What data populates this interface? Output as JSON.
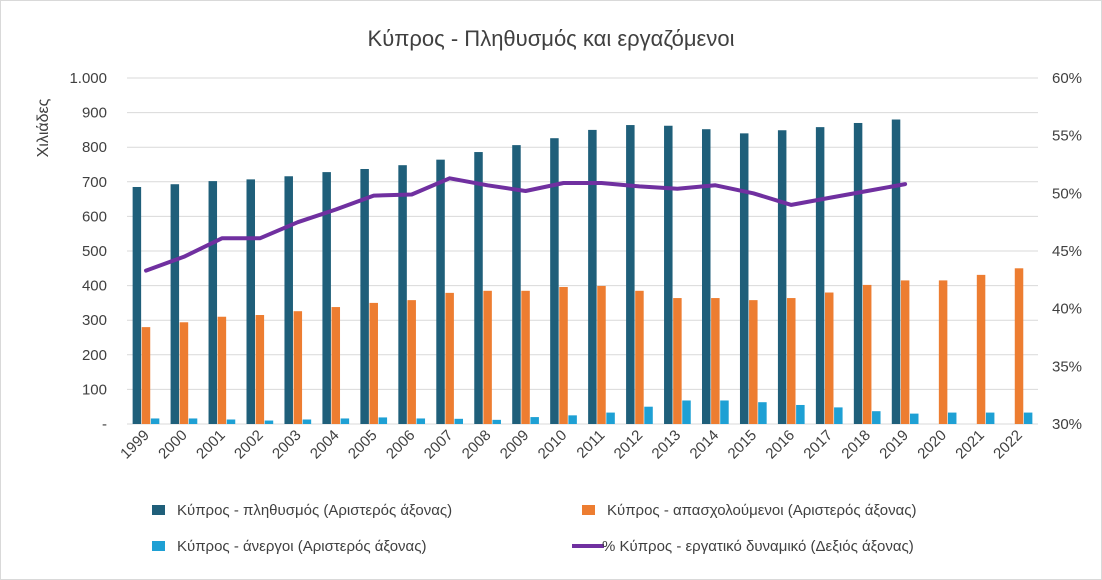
{
  "chart_data": {
    "type": "bar",
    "title": "Κύπρος - Πληθυσμός και εργαζόμενοι",
    "ylabel": "Χιλιάδες",
    "xlabel": "",
    "categories": [
      "1999",
      "2000",
      "2001",
      "2002",
      "2003",
      "2004",
      "2005",
      "2006",
      "2007",
      "2008",
      "2009",
      "2010",
      "2011",
      "2012",
      "2013",
      "2014",
      "2015",
      "2016",
      "2017",
      "2018",
      "2019",
      "2020",
      "2021",
      "2022"
    ],
    "ylim": [
      0,
      1000
    ],
    "y_ticks": [
      "-",
      "100",
      "200",
      "300",
      "400",
      "500",
      "600",
      "700",
      "800",
      "900",
      "1.000"
    ],
    "y2lim": [
      30,
      60
    ],
    "y2_ticks": [
      "30%",
      "35%",
      "40%",
      "45%",
      "50%",
      "55%",
      "60%"
    ],
    "grid": true,
    "legend_position": "bottom",
    "series": [
      {
        "name": "Κύπρος - πληθυσμός (Αριστερός άξονας)",
        "type": "bar",
        "axis": "left",
        "color": "#1f5f7a",
        "values": [
          685,
          693,
          702,
          707,
          716,
          728,
          737,
          748,
          764,
          786,
          806,
          826,
          850,
          864,
          862,
          852,
          840,
          849,
          858,
          870,
          880,
          null,
          null,
          null
        ]
      },
      {
        "name": "Κύπρος - απασχολούμενοι (Αριστερός άξονας)",
        "type": "bar",
        "axis": "left",
        "color": "#ed7d31",
        "values": [
          280,
          294,
          310,
          315,
          326,
          338,
          350,
          358,
          379,
          385,
          385,
          396,
          399,
          385,
          364,
          364,
          358,
          364,
          380,
          402,
          415,
          415,
          431,
          450
        ]
      },
      {
        "name": "Κύπρος - άνεργοι (Αριστερός άξονας)",
        "type": "bar",
        "axis": "left",
        "color": "#1ea0d4",
        "values": [
          16,
          16,
          13,
          10,
          13,
          16,
          19,
          16,
          15,
          12,
          20,
          25,
          33,
          50,
          68,
          68,
          63,
          55,
          48,
          37,
          30,
          33,
          33,
          33
        ]
      },
      {
        "name": "% Κύπρος - εργατικό δυναμικό (Δεξιός άξονας)",
        "type": "line",
        "axis": "right",
        "color": "#7030a0",
        "values": [
          43.3,
          44.5,
          46.1,
          46.1,
          47.5,
          48.6,
          49.8,
          49.9,
          51.3,
          50.7,
          50.2,
          50.9,
          50.9,
          50.6,
          50.4,
          50.7,
          50.0,
          49.0,
          49.6,
          50.2,
          50.8,
          null,
          null,
          null
        ]
      }
    ]
  }
}
